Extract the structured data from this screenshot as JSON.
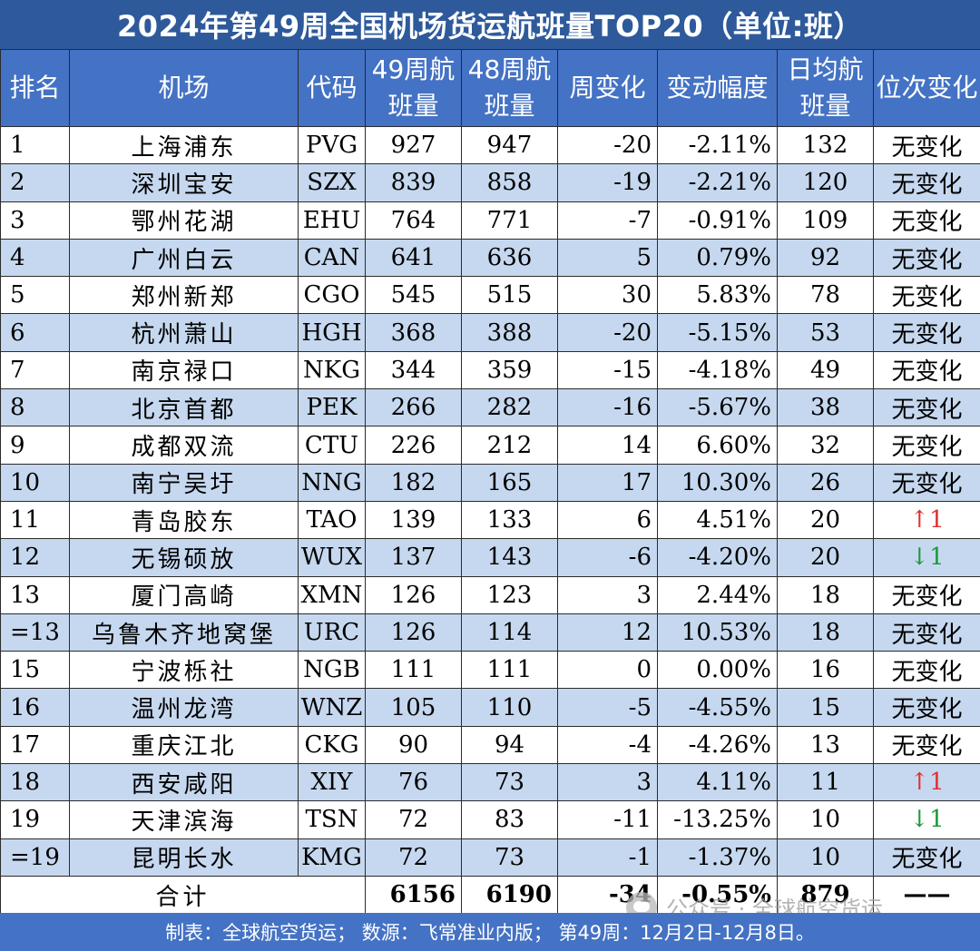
{
  "title": "2024年第49周全国机场货运航班量TOP20（单位:班）",
  "headers": [
    "排名",
    "机场",
    "代码",
    "49周航班量",
    "48周航班量",
    "周变化",
    "变动幅度",
    "日均航班量",
    "位次变化"
  ],
  "rows": [
    {
      "rank": "1",
      "airport": "上海浦东",
      "code": "PVG",
      "w49": "927",
      "w48": "947",
      "change": "-20",
      "pct": "-2.11%",
      "daily": "132",
      "pos": "无变化"
    },
    {
      "rank": "2",
      "airport": "深圳宝安",
      "code": "SZX",
      "w49": "839",
      "w48": "858",
      "change": "-19",
      "pct": "-2.21%",
      "daily": "120",
      "pos": "无变化"
    },
    {
      "rank": "3",
      "airport": "鄂州花湖",
      "code": "EHU",
      "w49": "764",
      "w48": "771",
      "change": "-7",
      "pct": "-0.91%",
      "daily": "109",
      "pos": "无变化"
    },
    {
      "rank": "4",
      "airport": "广州白云",
      "code": "CAN",
      "w49": "641",
      "w48": "636",
      "change": "5",
      "pct": "0.79%",
      "daily": "92",
      "pos": "无变化"
    },
    {
      "rank": "5",
      "airport": "郑州新郑",
      "code": "CGO",
      "w49": "545",
      "w48": "515",
      "change": "30",
      "pct": "5.83%",
      "daily": "78",
      "pos": "无变化"
    },
    {
      "rank": "6",
      "airport": "杭州萧山",
      "code": "HGH",
      "w49": "368",
      "w48": "388",
      "change": "-20",
      "pct": "-5.15%",
      "daily": "53",
      "pos": "无变化"
    },
    {
      "rank": "7",
      "airport": "南京禄口",
      "code": "NKG",
      "w49": "344",
      "w48": "359",
      "change": "-15",
      "pct": "-4.18%",
      "daily": "49",
      "pos": "无变化"
    },
    {
      "rank": "8",
      "airport": "北京首都",
      "code": "PEK",
      "w49": "266",
      "w48": "282",
      "change": "-16",
      "pct": "-5.67%",
      "daily": "38",
      "pos": "无变化"
    },
    {
      "rank": "9",
      "airport": "成都双流",
      "code": "CTU",
      "w49": "226",
      "w48": "212",
      "change": "14",
      "pct": "6.60%",
      "daily": "32",
      "pos": "无变化"
    },
    {
      "rank": "10",
      "airport": "南宁吴圩",
      "code": "NNG",
      "w49": "182",
      "w48": "165",
      "change": "17",
      "pct": "10.30%",
      "daily": "26",
      "pos": "无变化"
    },
    {
      "rank": "11",
      "airport": "青岛胶东",
      "code": "TAO",
      "w49": "139",
      "w48": "133",
      "change": "6",
      "pct": "4.51%",
      "daily": "20",
      "pos": "↑1"
    },
    {
      "rank": "12",
      "airport": "无锡硕放",
      "code": "WUX",
      "w49": "137",
      "w48": "143",
      "change": "-6",
      "pct": "-4.20%",
      "daily": "20",
      "pos": "↓1"
    },
    {
      "rank": "13",
      "airport": "厦门高崎",
      "code": "XMN",
      "w49": "126",
      "w48": "123",
      "change": "3",
      "pct": "2.44%",
      "daily": "18",
      "pos": "无变化"
    },
    {
      "rank": "=13",
      "airport": "乌鲁木齐地窝堡",
      "code": "URC",
      "w49": "126",
      "w48": "114",
      "change": "12",
      "pct": "10.53%",
      "daily": "18",
      "pos": "无变化"
    },
    {
      "rank": "15",
      "airport": "宁波栎社",
      "code": "NGB",
      "w49": "111",
      "w48": "111",
      "change": "0",
      "pct": "0.00%",
      "daily": "16",
      "pos": "无变化"
    },
    {
      "rank": "16",
      "airport": "温州龙湾",
      "code": "WNZ",
      "w49": "105",
      "w48": "110",
      "change": "-5",
      "pct": "-4.55%",
      "daily": "15",
      "pos": "无变化"
    },
    {
      "rank": "17",
      "airport": "重庆江北",
      "code": "CKG",
      "w49": "90",
      "w48": "94",
      "change": "-4",
      "pct": "-4.26%",
      "daily": "13",
      "pos": "无变化"
    },
    {
      "rank": "18",
      "airport": "西安咸阳",
      "code": "XIY",
      "w49": "76",
      "w48": "73",
      "change": "3",
      "pct": "4.11%",
      "daily": "11",
      "pos": "↑1"
    },
    {
      "rank": "19",
      "airport": "天津滨海",
      "code": "TSN",
      "w49": "72",
      "w48": "83",
      "change": "-11",
      "pct": "-13.25%",
      "daily": "10",
      "pos": "↓1"
    },
    {
      "rank": "=19",
      "airport": "昆明长水",
      "code": "KMG",
      "w49": "72",
      "w48": "73",
      "change": "-1",
      "pct": "-1.37%",
      "daily": "10",
      "pos": "无变化"
    }
  ],
  "total": {
    "label": "合计",
    "w49": "6156",
    "w48": "6190",
    "change": "-34",
    "pct": "-0.55%",
    "daily": "879",
    "pos": "——"
  },
  "watermark": "公众号 · 全球航空货运",
  "footer": "制表：全球航空货运；  数源：飞常准业内版；  第49周：12月2日-12月8日。",
  "colors": {
    "title_bg": "#2e5a9c",
    "header_bg": "#4472c4",
    "row_alt": "#c6d8ef",
    "up": "#e03030",
    "down": "#1a9a3a"
  }
}
